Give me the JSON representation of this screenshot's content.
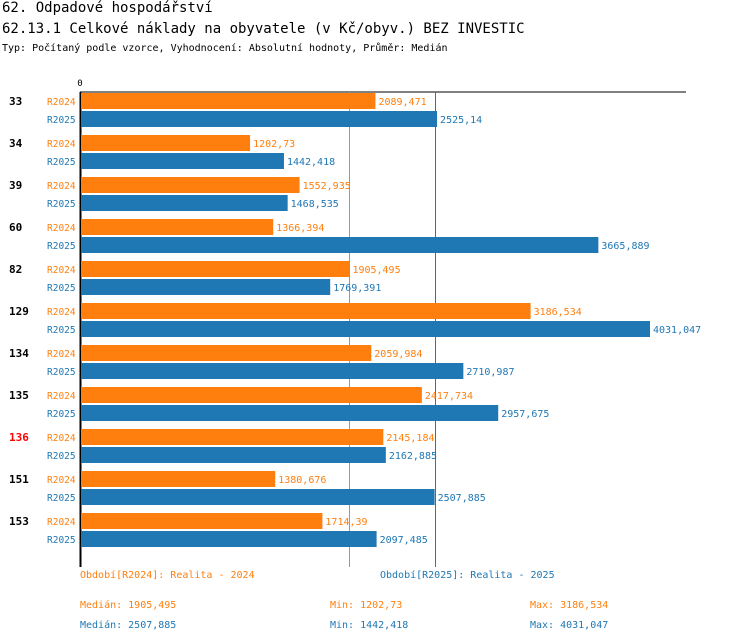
{
  "header": {
    "section": "62. Odpadové hospodářství",
    "indicator": "62.13.1 Celkové náklady na obyvatele (v Kč/obyv.) BEZ INVESTIC",
    "meta": "Typ: Počítaný podle vzorce, Vyhodnocení: Absolutní hodnoty, Průměr: Medián"
  },
  "colors": {
    "r2024": "#ff7f0e",
    "r2025": "#1f77b4",
    "highlight": "#ff0000"
  },
  "chart_data": {
    "type": "bar",
    "orientation": "horizontal",
    "axis_zero_label": "0",
    "xlim": [
      0,
      4031.047
    ],
    "categories": [
      "33",
      "34",
      "39",
      "60",
      "82",
      "129",
      "134",
      "135",
      "136",
      "151",
      "153"
    ],
    "highlighted_category": "136",
    "series": [
      {
        "name": "R2024",
        "values": [
          2089.471,
          1202.73,
          1552.935,
          1366.394,
          1905.495,
          3186.534,
          2059.984,
          2417.734,
          2145.184,
          1380.676,
          1714.39
        ],
        "labels": [
          "2089,471",
          "1202,73",
          "1552,935",
          "1366,394",
          "1905,495",
          "3186,534",
          "2059,984",
          "2417,734",
          "2145,184",
          "1380,676",
          "1714,39"
        ]
      },
      {
        "name": "R2025",
        "values": [
          2525.14,
          1442.418,
          1468.535,
          3665.889,
          1769.391,
          4031.047,
          2710.987,
          2957.675,
          2162.885,
          2507.885,
          2097.485
        ],
        "labels": [
          "2525,14",
          "1442,418",
          "1468,535",
          "3665,889",
          "1769,391",
          "4031,047",
          "2710,987",
          "2957,675",
          "2162,885",
          "2507,885",
          "2097,485"
        ]
      }
    ],
    "reference_lines": [
      {
        "series": "R2024",
        "value": 1905.495
      },
      {
        "series": "R2025",
        "value": 2507.885
      }
    ]
  },
  "footer": {
    "legend_2024": "Období[R2024]: Realita - 2024",
    "legend_2025": "Období[R2025]: Realita - 2025",
    "stats_2024": {
      "median": "Medián: 1905,495",
      "min": "Min: 1202,73",
      "max": "Max: 3186,534"
    },
    "stats_2025": {
      "median": "Medián: 2507,885",
      "min": "Min: 1442,418",
      "max": "Max: 4031,047"
    }
  }
}
